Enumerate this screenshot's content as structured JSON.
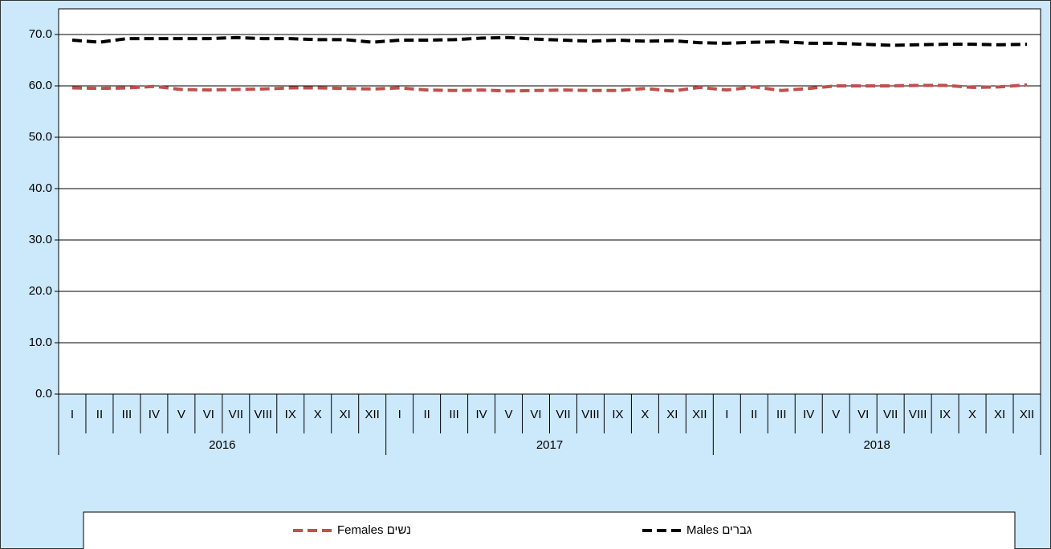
{
  "chart_data": {
    "type": "line",
    "categories": [
      "I",
      "II",
      "III",
      "IV",
      "V",
      "VI",
      "VII",
      "VIII",
      "IX",
      "X",
      "XI",
      "XII",
      "I",
      "II",
      "III",
      "IV",
      "V",
      "VI",
      "VII",
      "VIII",
      "IX",
      "X",
      "XI",
      "XII",
      "I",
      "II",
      "III",
      "IV",
      "V",
      "VI",
      "VII",
      "VIII",
      "IX",
      "X",
      "XI",
      "XII"
    ],
    "year_groups": [
      "2016",
      "2017",
      "2018"
    ],
    "series": [
      {
        "name": "Females נשים",
        "color": "#c0504d",
        "values": [
          59.6,
          59.5,
          59.6,
          59.9,
          59.3,
          59.2,
          59.3,
          59.4,
          59.6,
          59.6,
          59.5,
          59.4,
          59.6,
          59.2,
          59.1,
          59.2,
          59.0,
          59.1,
          59.2,
          59.1,
          59.1,
          59.5,
          59.0,
          59.7,
          59.2,
          59.8,
          59.1,
          59.5,
          60.0,
          60.0,
          60.0,
          60.1,
          60.1,
          59.7,
          59.8,
          60.2
        ]
      },
      {
        "name": "Males גברים",
        "color": "#000000",
        "values": [
          68.9,
          68.5,
          69.2,
          69.2,
          69.2,
          69.2,
          69.4,
          69.2,
          69.2,
          69.0,
          69.0,
          68.5,
          68.9,
          68.9,
          69.0,
          69.3,
          69.4,
          69.1,
          68.9,
          68.7,
          68.9,
          68.7,
          68.8,
          68.4,
          68.3,
          68.5,
          68.6,
          68.3,
          68.3,
          68.1,
          67.9,
          68.0,
          68.1,
          68.1,
          68.0,
          68.1
        ]
      }
    ],
    "ylim": [
      0,
      75
    ],
    "yticks": [
      {
        "value": 0,
        "label": "0.0"
      },
      {
        "value": 10,
        "label": "10.0"
      },
      {
        "value": 20,
        "label": "20.0"
      },
      {
        "value": 30,
        "label": "30.0"
      },
      {
        "value": 40,
        "label": "40.0"
      },
      {
        "value": 50,
        "label": "50.0"
      },
      {
        "value": 60,
        "label": "60.0"
      },
      {
        "value": 70,
        "label": "70.0"
      }
    ],
    "grid": true
  }
}
